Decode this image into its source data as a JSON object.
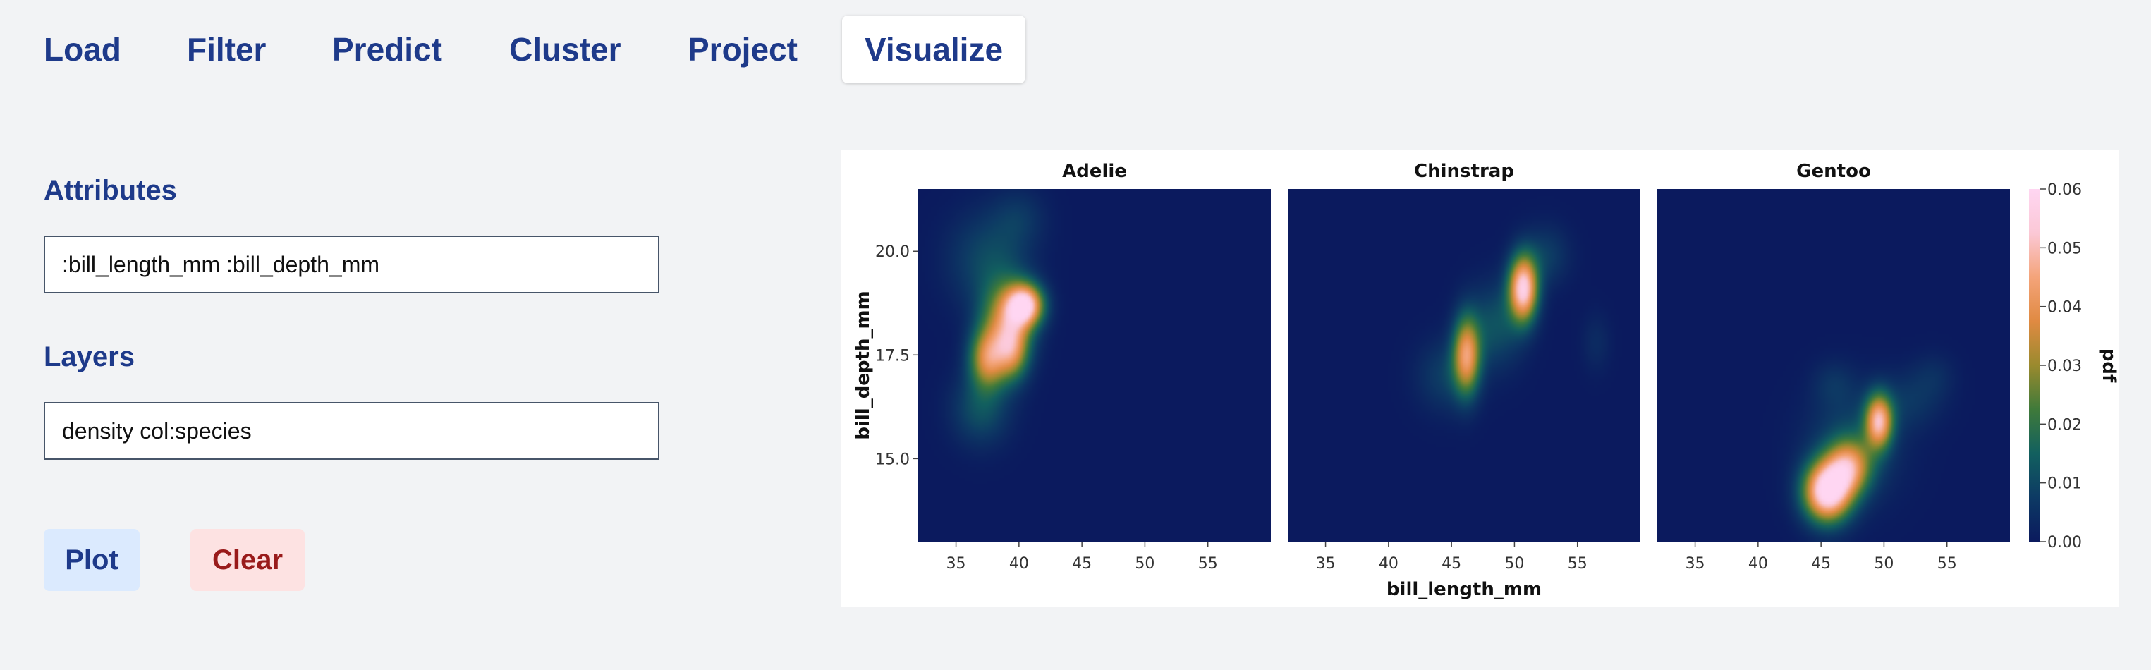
{
  "nav": {
    "tabs": [
      {
        "label": "Load",
        "active": false
      },
      {
        "label": "Filter",
        "active": false
      },
      {
        "label": "Predict",
        "active": false
      },
      {
        "label": "Cluster",
        "active": false
      },
      {
        "label": "Project",
        "active": false
      },
      {
        "label": "Visualize",
        "active": true
      }
    ]
  },
  "form": {
    "attributes_label": "Attributes",
    "attributes_value": ":bill_length_mm :bill_depth_mm",
    "layers_label": "Layers",
    "layers_value": "density col:species",
    "plot_label": "Plot",
    "clear_label": "Clear"
  },
  "colors": {
    "accent": "#1e3a8a",
    "plot_button_bg": "#dbeafe",
    "clear_button_bg": "#fde2e2",
    "clear_text": "#991b1b",
    "heat_background": "#0a1a5c"
  },
  "chart_data": {
    "type": "heatmap",
    "kind": "2D kernel density estimate, faceted by species",
    "title": "",
    "xlabel": "bill_length_mm",
    "ylabel": "bill_depth_mm",
    "xlim": [
      32,
      60
    ],
    "ylim": [
      13,
      21.5
    ],
    "xticks": [
      35,
      40,
      45,
      50,
      55
    ],
    "yticks": [
      15.0,
      17.5,
      20.0
    ],
    "grid": false,
    "facets": [
      {
        "name": "Adelie",
        "blobs": [
          {
            "x": 40.5,
            "y": 18.7,
            "sx": 1.0,
            "sy": 0.35,
            "w": 0.05
          },
          {
            "x": 39.0,
            "y": 18.3,
            "sx": 1.4,
            "sy": 0.7,
            "w": 0.032
          },
          {
            "x": 37.5,
            "y": 17.4,
            "sx": 1.0,
            "sy": 0.5,
            "w": 0.033
          },
          {
            "x": 39.5,
            "y": 17.6,
            "sx": 0.9,
            "sy": 0.5,
            "w": 0.026
          },
          {
            "x": 37.5,
            "y": 19.8,
            "sx": 2.2,
            "sy": 0.8,
            "w": 0.01
          },
          {
            "x": 40.0,
            "y": 20.8,
            "sx": 1.5,
            "sy": 0.5,
            "w": 0.006
          },
          {
            "x": 37.0,
            "y": 16.2,
            "sx": 1.6,
            "sy": 0.6,
            "w": 0.012
          }
        ]
      },
      {
        "name": "Chinstrap",
        "blobs": [
          {
            "x": 50.7,
            "y": 19.1,
            "sx": 0.8,
            "sy": 0.55,
            "w": 0.055
          },
          {
            "x": 46.2,
            "y": 17.5,
            "sx": 0.75,
            "sy": 0.65,
            "w": 0.04
          },
          {
            "x": 48.5,
            "y": 18.2,
            "sx": 1.5,
            "sy": 0.7,
            "w": 0.012
          },
          {
            "x": 52.5,
            "y": 19.9,
            "sx": 1.3,
            "sy": 0.5,
            "w": 0.008
          },
          {
            "x": 44.5,
            "y": 17.0,
            "sx": 1.6,
            "sy": 0.6,
            "w": 0.008
          },
          {
            "x": 56.5,
            "y": 17.8,
            "sx": 0.8,
            "sy": 0.5,
            "w": 0.004
          }
        ]
      },
      {
        "name": "Gentoo",
        "blobs": [
          {
            "x": 45.5,
            "y": 14.2,
            "sx": 1.3,
            "sy": 0.5,
            "w": 0.06
          },
          {
            "x": 47.2,
            "y": 14.8,
            "sx": 1.2,
            "sy": 0.45,
            "w": 0.035
          },
          {
            "x": 49.6,
            "y": 15.9,
            "sx": 0.75,
            "sy": 0.45,
            "w": 0.045
          },
          {
            "x": 47.5,
            "y": 15.3,
            "sx": 2.5,
            "sy": 0.9,
            "w": 0.01
          },
          {
            "x": 46.0,
            "y": 16.8,
            "sx": 1.2,
            "sy": 0.4,
            "w": 0.005
          },
          {
            "x": 52.0,
            "y": 16.4,
            "sx": 1.8,
            "sy": 0.5,
            "w": 0.006
          },
          {
            "x": 54.0,
            "y": 17.0,
            "sx": 1.2,
            "sy": 0.4,
            "w": 0.004
          }
        ]
      }
    ],
    "colorbar": {
      "label": "pdf",
      "ticks": [
        0.0,
        0.01,
        0.02,
        0.03,
        0.04,
        0.05,
        0.06
      ],
      "tick_labels": [
        "0.00",
        "0.01",
        "0.02",
        "0.03",
        "0.04",
        "0.05",
        "0.06"
      ],
      "range": [
        0,
        0.06
      ],
      "colors": [
        "#0b1a5e",
        "#0d3a64",
        "#12605f",
        "#3f7a3a",
        "#9a8a2e",
        "#e08a42",
        "#f4a47a",
        "#fbc8d6",
        "#ffd6f2"
      ]
    }
  }
}
